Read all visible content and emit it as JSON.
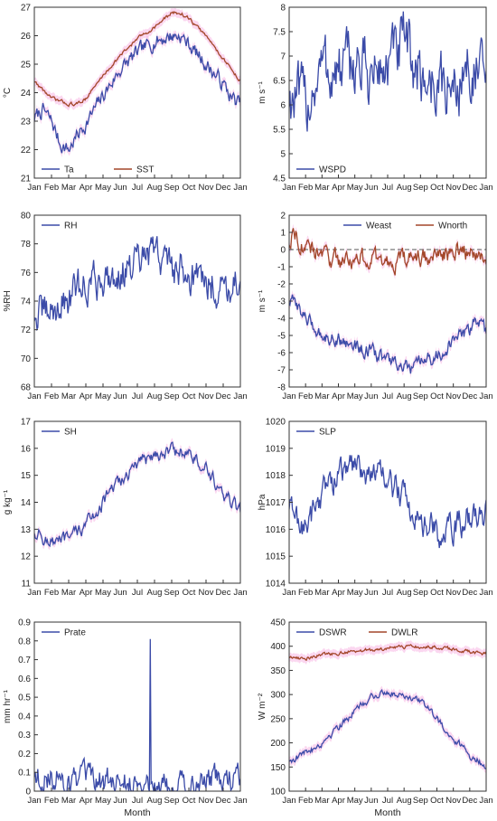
{
  "chart_data": [
    {
      "type": "line",
      "ylabel": "°C",
      "ylim": [
        21,
        27
      ],
      "yticks": [
        "21",
        "22",
        "23",
        "24",
        "25",
        "26",
        "27"
      ],
      "xticks": [
        "Jan",
        "Feb",
        "Mar",
        "Apr",
        "May",
        "Jun",
        "Jul",
        "Aug",
        "Sep",
        "Oct",
        "Nov",
        "Dec",
        "Jan"
      ],
      "xlabel": "",
      "legend_position": "bottom-left",
      "band_color": "#f7b6e4",
      "series": [
        {
          "name": "Ta",
          "color": "#3b4ba8",
          "key": [
            [
              0,
              23.1
            ],
            [
              0.5,
              23.4
            ],
            [
              1,
              23.0
            ],
            [
              1.5,
              22.2
            ],
            [
              2,
              22.0
            ],
            [
              2.5,
              22.5
            ],
            [
              3,
              22.9
            ],
            [
              4,
              23.9
            ],
            [
              5,
              24.8
            ],
            [
              6,
              25.4
            ],
            [
              7,
              25.8
            ],
            [
              8,
              26.0
            ],
            [
              8.5,
              26.0
            ],
            [
              9,
              25.7
            ],
            [
              10,
              25.0
            ],
            [
              11,
              24.3
            ],
            [
              11.5,
              23.8
            ],
            [
              12,
              23.6
            ]
          ],
          "noise": 0.22
        },
        {
          "name": "SST",
          "color": "#a3472a",
          "key": [
            [
              0,
              24.4
            ],
            [
              0.5,
              24.1
            ],
            [
              1,
              23.8
            ],
            [
              2,
              23.6
            ],
            [
              2.5,
              23.6
            ],
            [
              3,
              23.8
            ],
            [
              4,
              24.6
            ],
            [
              5,
              25.3
            ],
            [
              6,
              25.9
            ],
            [
              7,
              26.3
            ],
            [
              8,
              26.8
            ],
            [
              8.5,
              26.8
            ],
            [
              9,
              26.6
            ],
            [
              10,
              26.0
            ],
            [
              11,
              25.2
            ],
            [
              12,
              24.4
            ]
          ],
          "noise": 0.05
        }
      ]
    },
    {
      "type": "line",
      "ylabel": "m s⁻¹",
      "ylim": [
        4.5,
        8
      ],
      "yticks": [
        "4.5",
        "5",
        "5.5",
        "6",
        "6.5",
        "7",
        "7.5",
        "8"
      ],
      "xticks": [
        "Jan",
        "Feb",
        "Mar",
        "Apr",
        "May",
        "Jun",
        "Jul",
        "Aug",
        "Sep",
        "Oct",
        "Nov",
        "Dec",
        "Jan"
      ],
      "xlabel": "",
      "legend_position": "bottom-left",
      "band_color": "",
      "series": [
        {
          "name": "WSPD",
          "color": "#3b4ba8",
          "key": [
            [
              0,
              6.2
            ],
            [
              1,
              6.0
            ],
            [
              2,
              6.8
            ],
            [
              3,
              6.6
            ],
            [
              4,
              6.9
            ],
            [
              5,
              6.6
            ],
            [
              6,
              6.8
            ],
            [
              7,
              7.2
            ],
            [
              8,
              6.6
            ],
            [
              9,
              6.4
            ],
            [
              10,
              6.3
            ],
            [
              11,
              6.8
            ],
            [
              12,
              6.4
            ]
          ],
          "noise": 0.55
        }
      ]
    },
    {
      "type": "line",
      "ylabel": "%RH",
      "ylim": [
        68,
        80
      ],
      "yticks": [
        "68",
        "70",
        "72",
        "74",
        "76",
        "78",
        "80"
      ],
      "xticks": [
        "Jan",
        "Feb",
        "Mar",
        "Apr",
        "May",
        "Jun",
        "Jul",
        "Aug",
        "Sep",
        "Oct",
        "Nov",
        "Dec",
        "Jan"
      ],
      "xlabel": "",
      "legend_position": "top-left",
      "band_color": "",
      "series": [
        {
          "name": "RH",
          "color": "#3b4ba8",
          "key": [
            [
              0,
              73.0
            ],
            [
              1,
              73.2
            ],
            [
              2,
              74.2
            ],
            [
              3,
              75.2
            ],
            [
              4,
              75.6
            ],
            [
              5,
              76.0
            ],
            [
              6,
              76.4
            ],
            [
              7,
              77.4
            ],
            [
              8,
              76.5
            ],
            [
              9,
              76.0
            ],
            [
              10,
              75.4
            ],
            [
              11,
              75.0
            ],
            [
              12,
              75.6
            ]
          ],
          "noise": 1.1
        }
      ]
    },
    {
      "type": "line",
      "ylabel": "m s⁻¹",
      "ylim": [
        -8,
        2
      ],
      "yticks": [
        "-8",
        "-7",
        "-6",
        "-5",
        "-4",
        "-3",
        "-2",
        "-1",
        "0",
        "1",
        "2"
      ],
      "xticks": [
        "Jan",
        "Feb",
        "Mar",
        "Apr",
        "May",
        "Jun",
        "Jul",
        "Aug",
        "Sep",
        "Oct",
        "Nov",
        "Dec",
        "Jan"
      ],
      "xlabel": "",
      "legend_position": "top-right",
      "band_color": "#f7b6e4",
      "zero_line": true,
      "series": [
        {
          "name": "Weast",
          "color": "#3b4ba8",
          "key": [
            [
              0,
              -3.0
            ],
            [
              0.5,
              -3.2
            ],
            [
              1,
              -4.0
            ],
            [
              2,
              -5.0
            ],
            [
              3,
              -5.2
            ],
            [
              4,
              -5.6
            ],
            [
              5,
              -6.0
            ],
            [
              6,
              -6.4
            ],
            [
              7,
              -6.9
            ],
            [
              7.5,
              -7.0
            ],
            [
              8,
              -6.6
            ],
            [
              9,
              -6.2
            ],
            [
              10,
              -5.4
            ],
            [
              11,
              -4.6
            ],
            [
              11.5,
              -4.0
            ],
            [
              12,
              -4.8
            ]
          ],
          "noise": 0.35
        },
        {
          "name": "Wnorth",
          "color": "#a3472a",
          "key": [
            [
              0,
              0.4
            ],
            [
              0.3,
              1.2
            ],
            [
              1,
              0.0
            ],
            [
              2,
              -0.3
            ],
            [
              3,
              -0.6
            ],
            [
              4,
              -0.5
            ],
            [
              5,
              -0.6
            ],
            [
              6,
              -0.8
            ],
            [
              7,
              -0.6
            ],
            [
              8,
              -0.5
            ],
            [
              9,
              -0.4
            ],
            [
              10,
              -0.2
            ],
            [
              11,
              -0.1
            ],
            [
              12,
              -0.3
            ]
          ],
          "noise": 0.45
        }
      ]
    },
    {
      "type": "line",
      "ylabel": "g kg⁻¹",
      "ylim": [
        11,
        17
      ],
      "yticks": [
        "11",
        "12",
        "13",
        "14",
        "15",
        "16",
        "17"
      ],
      "xticks": [
        "Jan",
        "Feb",
        "Mar",
        "Apr",
        "May",
        "Jun",
        "Jul",
        "Aug",
        "Sep",
        "Oct",
        "Nov",
        "Dec",
        "Jan"
      ],
      "xlabel": "",
      "legend_position": "top-left",
      "band_color": "#f7b6e4",
      "series": [
        {
          "name": "SH",
          "color": "#3b4ba8",
          "key": [
            [
              0,
              12.9
            ],
            [
              1,
              12.5
            ],
            [
              2,
              12.6
            ],
            [
              3,
              13.2
            ],
            [
              4,
              14.0
            ],
            [
              5,
              14.8
            ],
            [
              6,
              15.4
            ],
            [
              7,
              15.8
            ],
            [
              8,
              15.9
            ],
            [
              9,
              15.8
            ],
            [
              10,
              15.2
            ],
            [
              11,
              14.2
            ],
            [
              12,
              13.7
            ]
          ],
          "noise": 0.22
        }
      ]
    },
    {
      "type": "line",
      "ylabel": "hPa",
      "ylim": [
        1014,
        1020
      ],
      "yticks": [
        "1014",
        "1015",
        "1016",
        "1017",
        "1018",
        "1019",
        "1020"
      ],
      "xticks": [
        "Jan",
        "Feb",
        "Mar",
        "Apr",
        "May",
        "Jun",
        "Jul",
        "Aug",
        "Sep",
        "Oct",
        "Nov",
        "Dec",
        "Jan"
      ],
      "xlabel": "",
      "legend_position": "top-left",
      "band_color": "",
      "series": [
        {
          "name": "SLP",
          "color": "#3b4ba8",
          "key": [
            [
              0,
              1016.8
            ],
            [
              1,
              1016.0
            ],
            [
              2,
              1017.4
            ],
            [
              3,
              1018.0
            ],
            [
              4,
              1018.4
            ],
            [
              5,
              1018.1
            ],
            [
              6,
              1017.8
            ],
            [
              7,
              1017.2
            ],
            [
              8,
              1016.3
            ],
            [
              9,
              1015.8
            ],
            [
              10,
              1016.0
            ],
            [
              11,
              1016.5
            ],
            [
              12,
              1016.6
            ]
          ],
          "noise": 0.45
        }
      ]
    },
    {
      "type": "line",
      "ylabel": "mm hr⁻¹",
      "ylim": [
        0,
        0.9
      ],
      "yticks": [
        "0",
        "0.1",
        "0.2",
        "0.3",
        "0.4",
        "0.5",
        "0.6",
        "0.7",
        "0.8",
        "0.9"
      ],
      "xticks": [
        "Jan",
        "Feb",
        "Mar",
        "Apr",
        "May",
        "Jun",
        "Jul",
        "Aug",
        "Sep",
        "Oct",
        "Nov",
        "Dec",
        "Jan"
      ],
      "xlabel": "Month",
      "legend_position": "top-left",
      "band_color": "",
      "spike": {
        "x": 6.75,
        "y": 0.81
      },
      "series": [
        {
          "name": "Prate",
          "color": "#3b4ba8",
          "key": [
            [
              0,
              0.08
            ],
            [
              2,
              0.06
            ],
            [
              4,
              0.05
            ],
            [
              6,
              0.04
            ],
            [
              8,
              0.04
            ],
            [
              10,
              0.06
            ],
            [
              12,
              0.07
            ]
          ],
          "noise": 0.06,
          "floor": 0
        }
      ]
    },
    {
      "type": "line",
      "ylabel": "W m⁻²",
      "ylim": [
        100,
        450
      ],
      "yticks": [
        "100",
        "150",
        "200",
        "250",
        "300",
        "350",
        "400",
        "450"
      ],
      "xticks": [
        "Jan",
        "Feb",
        "Mar",
        "Apr",
        "May",
        "Jun",
        "Jul",
        "Aug",
        "Sep",
        "Oct",
        "Nov",
        "Dec",
        "Jan"
      ],
      "xlabel": "Month",
      "legend_position": "top-left",
      "band_color": "#f7b6e4",
      "series": [
        {
          "name": "DSWR",
          "color": "#3b4ba8",
          "key": [
            [
              0,
              162
            ],
            [
              1,
              180
            ],
            [
              2,
              200
            ],
            [
              3,
              235
            ],
            [
              4,
              265
            ],
            [
              5,
              295
            ],
            [
              6,
              305
            ],
            [
              7,
              300
            ],
            [
              8,
              288
            ],
            [
              9,
              250
            ],
            [
              10,
              210
            ],
            [
              11,
              175
            ],
            [
              12,
              152
            ]
          ],
          "noise": 6
        },
        {
          "name": "DWLR",
          "color": "#a3472a",
          "key": [
            [
              0,
              378
            ],
            [
              1,
              375
            ],
            [
              2,
              383
            ],
            [
              3,
              386
            ],
            [
              4,
              390
            ],
            [
              5,
              392
            ],
            [
              6,
              396
            ],
            [
              7,
              398
            ],
            [
              8,
              400
            ],
            [
              9,
              398
            ],
            [
              10,
              393
            ],
            [
              11,
              388
            ],
            [
              12,
              384
            ]
          ],
          "noise": 3
        }
      ]
    }
  ]
}
